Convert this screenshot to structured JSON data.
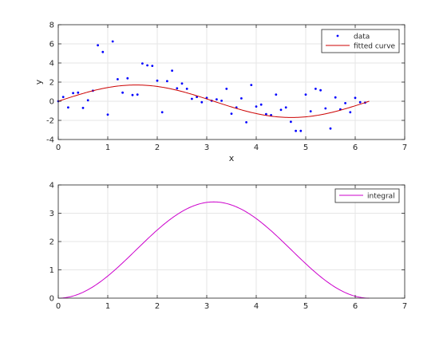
{
  "chart_data": [
    {
      "type": "scatter",
      "xlabel": "x",
      "ylabel": "y",
      "xlim": [
        0,
        7
      ],
      "ylim": [
        -4,
        8
      ],
      "xticks": [
        "0",
        "1",
        "2",
        "3",
        "4",
        "5",
        "6",
        "7"
      ],
      "yticks": [
        "-4",
        "-2",
        "0",
        "2",
        "4",
        "6",
        "8"
      ],
      "grid": true,
      "legend_position": "top-right",
      "series": [
        {
          "name": "data",
          "kind": "markers",
          "color": "#0000ff",
          "points": [
            [
              0.0,
              0.0
            ],
            [
              0.1,
              0.45
            ],
            [
              0.2,
              -0.65
            ],
            [
              0.3,
              0.85
            ],
            [
              0.4,
              0.9
            ],
            [
              0.5,
              -0.7
            ],
            [
              0.6,
              0.1
            ],
            [
              0.7,
              1.1
            ],
            [
              0.8,
              5.85
            ],
            [
              0.9,
              5.15
            ],
            [
              1.0,
              -1.4
            ],
            [
              1.1,
              6.25
            ],
            [
              1.2,
              2.3
            ],
            [
              1.3,
              0.9
            ],
            [
              1.4,
              2.4
            ],
            [
              1.5,
              0.65
            ],
            [
              1.6,
              0.7
            ],
            [
              1.7,
              3.95
            ],
            [
              1.8,
              3.75
            ],
            [
              1.9,
              3.7
            ],
            [
              2.0,
              2.15
            ],
            [
              2.1,
              -1.15
            ],
            [
              2.2,
              2.1
            ],
            [
              2.3,
              3.2
            ],
            [
              2.4,
              1.35
            ],
            [
              2.5,
              1.85
            ],
            [
              2.6,
              1.3
            ],
            [
              2.7,
              0.25
            ],
            [
              2.8,
              0.45
            ],
            [
              2.9,
              -0.1
            ],
            [
              3.0,
              0.35
            ],
            [
              3.1,
              0.05
            ],
            [
              3.2,
              0.2
            ],
            [
              3.3,
              0.05
            ],
            [
              3.4,
              1.3
            ],
            [
              3.5,
              -1.3
            ],
            [
              3.6,
              -0.65
            ],
            [
              3.7,
              0.3
            ],
            [
              3.8,
              -2.2
            ],
            [
              3.9,
              1.7
            ],
            [
              4.0,
              -0.55
            ],
            [
              4.1,
              -0.35
            ],
            [
              4.2,
              -1.35
            ],
            [
              4.3,
              -1.45
            ],
            [
              4.4,
              0.7
            ],
            [
              4.5,
              -0.9
            ],
            [
              4.6,
              -0.65
            ],
            [
              4.7,
              -2.15
            ],
            [
              4.8,
              -3.1
            ],
            [
              4.9,
              -3.1
            ],
            [
              5.0,
              0.7
            ],
            [
              5.1,
              -1.05
            ],
            [
              5.2,
              1.3
            ],
            [
              5.3,
              1.15
            ],
            [
              5.4,
              -0.75
            ],
            [
              5.5,
              -2.85
            ],
            [
              5.6,
              0.4
            ],
            [
              5.7,
              -0.85
            ],
            [
              5.8,
              -0.2
            ],
            [
              5.9,
              -1.15
            ],
            [
              6.0,
              0.35
            ],
            [
              6.1,
              -0.1
            ],
            [
              6.2,
              -0.15
            ]
          ]
        },
        {
          "name": "fitted curve",
          "kind": "line",
          "color": "#cc0000",
          "function": "1.7*sin(x)",
          "x_range": [
            0,
            6.2832
          ]
        }
      ]
    },
    {
      "type": "line",
      "xlabel": "",
      "ylabel": "",
      "xlim": [
        0,
        7
      ],
      "ylim": [
        0,
        4
      ],
      "xticks": [
        "0",
        "1",
        "2",
        "3",
        "4",
        "5",
        "6",
        "7"
      ],
      "yticks": [
        "0",
        "1",
        "2",
        "3",
        "4"
      ],
      "grid": true,
      "legend_position": "top-right",
      "series": [
        {
          "name": "integral",
          "kind": "line",
          "color": "#cc00cc",
          "function": "1.7*(1-cos(x))",
          "x_range": [
            0,
            6.2832
          ]
        }
      ]
    }
  ]
}
